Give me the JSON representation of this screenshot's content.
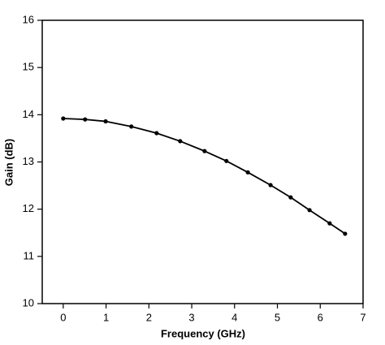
{
  "chart_data": {
    "type": "line",
    "x_label": "Frequency (GHz)",
    "y_label": "Gain (dB)",
    "x": [
      0,
      0.51,
      0.99,
      1.59,
      2.18,
      2.73,
      3.3,
      3.81,
      4.31,
      4.84,
      5.31,
      5.75,
      6.22,
      6.58
    ],
    "series": [
      {
        "name": "Gain",
        "color": "#000000",
        "values": [
          13.92,
          13.9,
          13.86,
          13.75,
          13.61,
          13.44,
          13.23,
          13.02,
          12.78,
          12.51,
          12.25,
          11.98,
          11.7,
          11.48
        ]
      }
    ],
    "xlim": [
      -0.49,
      7
    ],
    "ylim": [
      10,
      16
    ],
    "xticks": [
      0,
      1,
      2,
      3,
      4,
      5,
      6,
      7
    ],
    "yticks": [
      10,
      11,
      12,
      13,
      14,
      15,
      16
    ]
  }
}
